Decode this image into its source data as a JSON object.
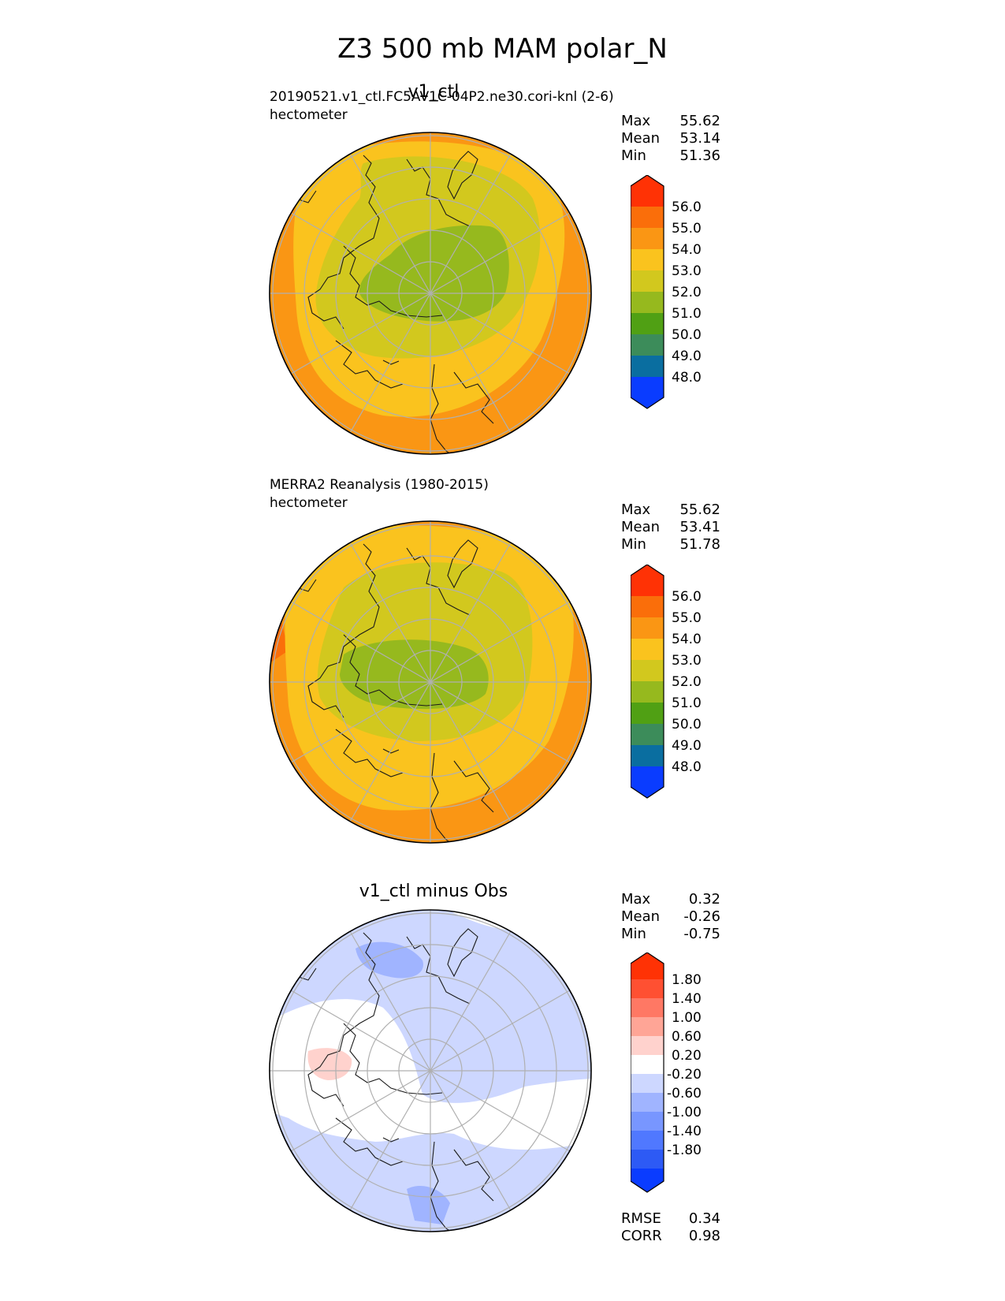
{
  "figure_title": "Z3 500 mb MAM polar_N",
  "panels": [
    {
      "title": "v1_ctl",
      "subtitle_line1": "20190521.v1_ctl.FC5AV1C-04P2.ne30.cori-knl (2-6)",
      "subtitle_line2": "hectometer",
      "stats": [
        {
          "label": "Max",
          "value": "55.62"
        },
        {
          "label": "Mean",
          "value": "53.14"
        },
        {
          "label": "Min",
          "value": "51.36"
        }
      ],
      "colorbar_ticks": [
        "56.0",
        "55.0",
        "54.0",
        "53.0",
        "52.0",
        "51.0",
        "50.0",
        "49.0",
        "48.0"
      ]
    },
    {
      "title": "",
      "subtitle_line1": "MERRA2 Reanalysis (1980-2015)",
      "subtitle_line2": "hectometer",
      "stats": [
        {
          "label": "Max",
          "value": "55.62"
        },
        {
          "label": "Mean",
          "value": "53.41"
        },
        {
          "label": "Min",
          "value": "51.78"
        }
      ],
      "colorbar_ticks": [
        "56.0",
        "55.0",
        "54.0",
        "53.0",
        "52.0",
        "51.0",
        "50.0",
        "49.0",
        "48.0"
      ]
    },
    {
      "title": "v1_ctl minus Obs",
      "subtitle_line1": "",
      "subtitle_line2": "",
      "stats": [
        {
          "label": "Max",
          "value": "0.32"
        },
        {
          "label": "Mean",
          "value": "-0.26"
        },
        {
          "label": "Min",
          "value": "-0.75"
        }
      ],
      "colorbar_ticks": [
        "1.80",
        "1.40",
        "1.00",
        "0.60",
        "0.20",
        "-0.20",
        "-0.60",
        "-1.00",
        "-1.40",
        "-1.80"
      ],
      "metrics": [
        {
          "label": "RMSE",
          "value": "0.34"
        },
        {
          "label": "CORR",
          "value": "0.98"
        }
      ]
    }
  ],
  "chart_data": [
    {
      "type": "heatmap",
      "projection": "north polar stereographic",
      "title": "v1_ctl",
      "units": "hectometer",
      "colorbar_levels": [
        48.0,
        49.0,
        50.0,
        51.0,
        52.0,
        53.0,
        54.0,
        55.0,
        56.0
      ],
      "colorbar_colors": [
        "#0a3cff",
        "#0a6ea0",
        "#3c8c5a",
        "#50a014",
        "#96b91e",
        "#d2c81e",
        "#fac31e",
        "#fa9614",
        "#fa6e0a",
        "#ff3205"
      ],
      "extend": "both",
      "stats": {
        "max": 55.62,
        "mean": 53.14,
        "min": 51.36
      }
    },
    {
      "type": "heatmap",
      "projection": "north polar stereographic",
      "title": "MERRA2 Reanalysis (1980-2015)",
      "units": "hectometer",
      "colorbar_levels": [
        48.0,
        49.0,
        50.0,
        51.0,
        52.0,
        53.0,
        54.0,
        55.0,
        56.0
      ],
      "colorbar_colors": [
        "#0a3cff",
        "#0a6ea0",
        "#3c8c5a",
        "#50a014",
        "#96b91e",
        "#d2c81e",
        "#fac31e",
        "#fa9614",
        "#fa6e0a",
        "#ff3205"
      ],
      "extend": "both",
      "stats": {
        "max": 55.62,
        "mean": 53.41,
        "min": 51.78
      }
    },
    {
      "type": "heatmap",
      "projection": "north polar stereographic",
      "title": "v1_ctl minus Obs",
      "colorbar_levels": [
        -1.8,
        -1.4,
        -1.0,
        -0.6,
        -0.2,
        0.2,
        0.6,
        1.0,
        1.4,
        1.8
      ],
      "colorbar_colors": [
        "#0a3cff",
        "#2d5af5",
        "#5078ff",
        "#7896ff",
        "#a0b4ff",
        "#cdd7ff",
        "#ffffff",
        "#ffd2cd",
        "#ffa596",
        "#ff7864",
        "#ff5032",
        "#ff3205"
      ],
      "extend": "both",
      "stats": {
        "max": 0.32,
        "mean": -0.26,
        "min": -0.75
      },
      "rmse": 0.34,
      "corr": 0.98
    }
  ]
}
